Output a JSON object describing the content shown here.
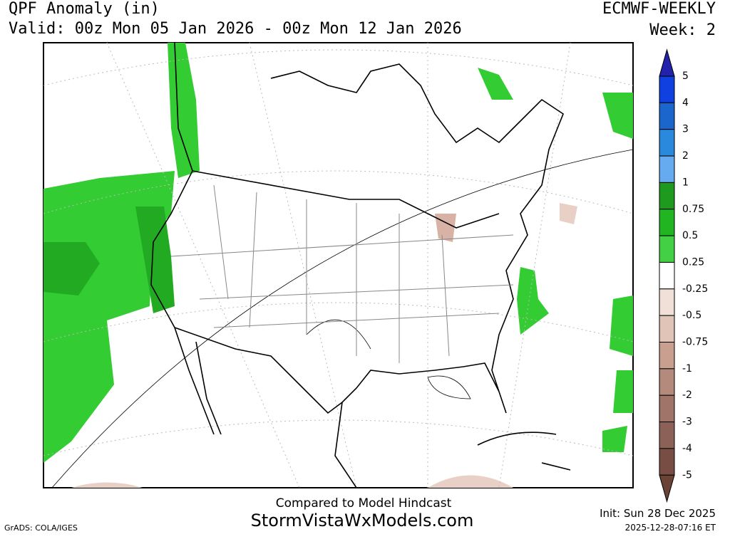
{
  "header": {
    "title": "QPF Anomaly (in)",
    "valid": "Valid: 00z Mon 05 Jan 2026 - 00z Mon 12 Jan 2026",
    "model": "ECMWF-WEEKLY",
    "week": "Week: 2"
  },
  "legend": {
    "labels": [
      "5",
      "4",
      "3",
      "2",
      "1",
      "0.75",
      "0.5",
      "0.25",
      "-0.25",
      "-0.5",
      "-0.75",
      "-1",
      "-2",
      "-3",
      "-4",
      "-5"
    ]
  },
  "footer": {
    "compared": "Compared to Model Hindcast",
    "site": "StormVistaWxModels.com",
    "init": "Init: Sun 28 Dec 2025",
    "timestamp": "2025-12-28-07:16 ET",
    "credit": "GrADS: COLA/IGES"
  }
}
